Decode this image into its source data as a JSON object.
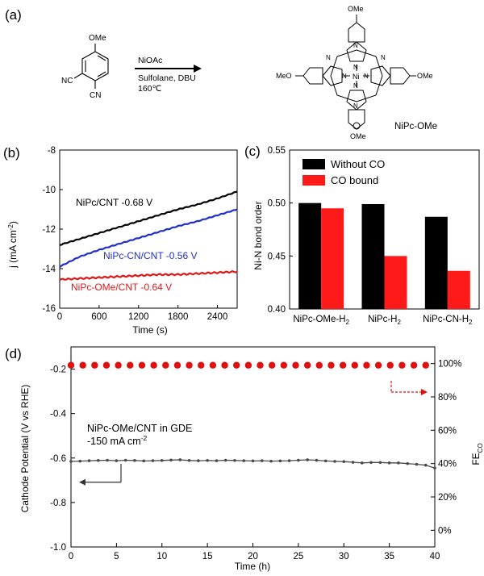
{
  "panel_a": {
    "label": "(a)",
    "reactant_substituent": "OMe",
    "reactant_nc1": "NC",
    "reactant_cn2": "CN",
    "reagent_line1": "NiOAc",
    "reagent_line2": "Sulfolane, DBU",
    "reagent_line3": "160℃",
    "product_top": "OMe",
    "product_left": "MeO",
    "product_right": "OMe",
    "product_bottom": "OMe",
    "product_metal": "Ni",
    "product_name": "NiPc-OMe",
    "ring_n": "N"
  },
  "chart_data": [
    {
      "id": "b",
      "panel_label": "(b)",
      "type": "line",
      "xlabel": "Time (s)",
      "ylabel_main": "j (mA cm",
      "ylabel_sup": "-2",
      "ylabel_end": ")",
      "xlim": [
        0,
        2700
      ],
      "ylim": [
        -16,
        -8
      ],
      "xticks": [
        0,
        600,
        1200,
        1800,
        2400
      ],
      "xtick_labels": [
        "0",
        "600",
        "1200",
        "1800",
        "2400"
      ],
      "yticks": [
        -16,
        -14,
        -12,
        -10,
        -8
      ],
      "ytick_labels": [
        "-16",
        "-14",
        "-12",
        "-10",
        "-8"
      ],
      "series": [
        {
          "name": "NiPc/CNT -0.68 V",
          "color": "#000000",
          "x": [
            0,
            300,
            600,
            900,
            1200,
            1500,
            1800,
            2100,
            2400,
            2700
          ],
          "y": [
            -12.8,
            -12.5,
            -12.2,
            -11.9,
            -11.6,
            -11.3,
            -11.0,
            -10.75,
            -10.45,
            -10.1
          ]
        },
        {
          "name": "NiPc-CN/CNT -0.56 V",
          "color": "#1f2fcc",
          "x": [
            0,
            300,
            600,
            900,
            1200,
            1500,
            1800,
            2100,
            2400,
            2700
          ],
          "y": [
            -13.9,
            -13.4,
            -13.05,
            -12.75,
            -12.45,
            -12.15,
            -11.85,
            -11.6,
            -11.3,
            -11.0
          ]
        },
        {
          "name": "NiPc-OMe/CNT -0.64 V",
          "color": "#e01818",
          "x": [
            0,
            300,
            600,
            900,
            1200,
            1500,
            1800,
            2100,
            2400,
            2700
          ],
          "y": [
            -14.55,
            -14.5,
            -14.45,
            -14.4,
            -14.35,
            -14.3,
            -14.3,
            -14.25,
            -14.2,
            -14.15
          ]
        }
      ]
    },
    {
      "id": "c",
      "panel_label": "(c)",
      "type": "bar",
      "ylabel": "Ni-N bond order",
      "ylim": [
        0.4,
        0.55
      ],
      "yticks": [
        0.4,
        0.45,
        0.5,
        0.55
      ],
      "ytick_labels": [
        "0.40",
        "0.45",
        "0.50",
        "0.55"
      ],
      "categories": [
        "NiPc-OMe-H",
        "NiPc-H",
        "NiPc-CN-H"
      ],
      "category_sub": "2",
      "legend_position": "top-left",
      "series": [
        {
          "name": "Without CO",
          "color": "#000000",
          "values": [
            0.5,
            0.499,
            0.487
          ]
        },
        {
          "name": "CO bound",
          "color": "#ff1a1a",
          "values": [
            0.495,
            0.45,
            0.436
          ]
        }
      ]
    },
    {
      "id": "d",
      "panel_label": "(d)",
      "type": "scatter",
      "xlabel": "Time (h)",
      "ylabel_left": "Cathode Potential (V vs RHE)",
      "ylabel_right_main": "FE",
      "ylabel_right_sub": "CO",
      "xlim": [
        0,
        40
      ],
      "ylim_left": [
        -1.0,
        -0.1
      ],
      "ylim_right": [
        -10,
        110
      ],
      "xticks": [
        0,
        5,
        10,
        15,
        20,
        25,
        30,
        35,
        40
      ],
      "xtick_labels": [
        "0",
        "5",
        "10",
        "15",
        "20",
        "25",
        "30",
        "35",
        "40"
      ],
      "yticks_left": [
        -1.0,
        -0.8,
        -0.6,
        -0.4,
        -0.2
      ],
      "ytick_left_labels": [
        "-1.0",
        "-0.8",
        "-0.6",
        "-0.4",
        "-0.2"
      ],
      "yticks_right": [
        0,
        20,
        40,
        60,
        80,
        100
      ],
      "ytick_right_labels": [
        "0%",
        "20%",
        "40%",
        "60%",
        "80%",
        "100%"
      ],
      "annotation_line1": "NiPc-OMe/CNT in GDE",
      "annotation_line2_main": "-150 mA cm",
      "annotation_line2_sup": "-2",
      "potential_color": "#4a4a4a",
      "fe_color": "#e01010",
      "potential": {
        "x": [
          0,
          1,
          2,
          3,
          4,
          5,
          6,
          7,
          8,
          9,
          10,
          11,
          12,
          13,
          14,
          15,
          16,
          17,
          18,
          19,
          20,
          21,
          22,
          23,
          24,
          25,
          26,
          27,
          28,
          29,
          30,
          31,
          32,
          33,
          34,
          35,
          36,
          37,
          38,
          39,
          40
        ],
        "y": [
          -0.615,
          -0.614,
          -0.612,
          -0.611,
          -0.61,
          -0.612,
          -0.61,
          -0.611,
          -0.613,
          -0.612,
          -0.611,
          -0.609,
          -0.608,
          -0.611,
          -0.612,
          -0.611,
          -0.612,
          -0.61,
          -0.611,
          -0.612,
          -0.613,
          -0.612,
          -0.614,
          -0.613,
          -0.612,
          -0.61,
          -0.608,
          -0.61,
          -0.613,
          -0.615,
          -0.616,
          -0.619,
          -0.622,
          -0.62,
          -0.62,
          -0.622,
          -0.622,
          -0.625,
          -0.628,
          -0.632,
          -0.645
        ]
      },
      "fe": {
        "x": [
          0,
          1.3,
          2.6,
          3.9,
          5.2,
          6.5,
          7.8,
          9.1,
          10.4,
          11.7,
          13.0,
          14.3,
          15.6,
          16.9,
          18.2,
          19.5,
          20.8,
          22.1,
          23.4,
          24.7,
          26.0,
          27.3,
          28.6,
          29.9,
          31.2,
          32.5,
          33.8,
          35.1,
          36.4,
          37.7,
          39.0
        ],
        "y": [
          99,
          99,
          99,
          99,
          99,
          99,
          99,
          99,
          99,
          99,
          99,
          99,
          99,
          99,
          99,
          99,
          99,
          99,
          99,
          99,
          99,
          99,
          99,
          99,
          99,
          99,
          99,
          99,
          99,
          99,
          99
        ]
      }
    }
  ]
}
